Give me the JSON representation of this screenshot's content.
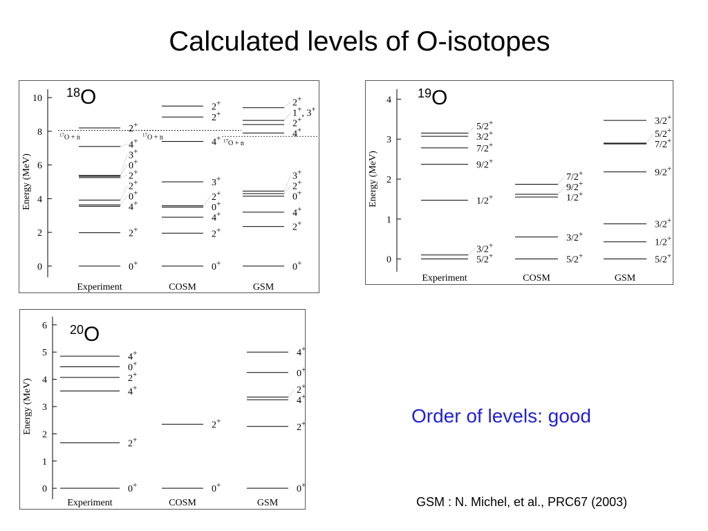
{
  "slide": {
    "title": "Calculated levels of O-isotopes",
    "note": "Order of levels: good",
    "citation": "GSM : N. Michel, et al., PRC67 (2003)"
  },
  "chart_data": [
    {
      "type": "level-scheme",
      "isotope": {
        "mass": "18",
        "symbol": "O"
      },
      "ylabel": "Energy (MeV)",
      "ylim": [
        -0.5,
        10.5
      ],
      "yticks": [
        0,
        2,
        4,
        6,
        8,
        10
      ],
      "columns": [
        {
          "name": "Experiment",
          "levels": [
            {
              "e": 0,
              "label": "0+"
            },
            {
              "e": 1.98,
              "label": "2+"
            },
            {
              "e": 3.55,
              "label": "4+"
            },
            {
              "e": 3.63,
              "label": "0+"
            },
            {
              "e": 3.92,
              "label": "2+"
            },
            {
              "e": 5.25,
              "label": "2+"
            },
            {
              "e": 5.33,
              "label": "0+"
            },
            {
              "e": 5.38,
              "label": "3+"
            },
            {
              "e": 7.1,
              "label": "4+"
            },
            {
              "e": 8.2,
              "label": "2+"
            }
          ]
        },
        {
          "name": "COSM",
          "levels": [
            {
              "e": 0,
              "label": "0+"
            },
            {
              "e": 1.95,
              "label": "2+"
            },
            {
              "e": 2.9,
              "label": "4+"
            },
            {
              "e": 3.5,
              "label": "0+"
            },
            {
              "e": 3.58,
              "label": "2+"
            },
            {
              "e": 5.0,
              "label": "3+"
            },
            {
              "e": 7.4,
              "label": "4+"
            },
            {
              "e": 8.85,
              "label": "2+"
            },
            {
              "e": 9.5,
              "label": "2+"
            }
          ]
        },
        {
          "name": "GSM",
          "levels": [
            {
              "e": 0,
              "label": "0+"
            },
            {
              "e": 2.35,
              "label": "2+"
            },
            {
              "e": 3.2,
              "label": "4+"
            },
            {
              "e": 4.15,
              "label": "0+"
            },
            {
              "e": 4.3,
              "label": "2+"
            },
            {
              "e": 4.45,
              "label": "3+"
            },
            {
              "e": 7.9,
              "label": "4+"
            },
            {
              "e": 8.4,
              "label": "2+"
            },
            {
              "e": 8.65,
              "label": "1+,  3+"
            },
            {
              "e": 9.4,
              "label": "2+"
            }
          ]
        }
      ],
      "thresholds": [
        {
          "column": "Experiment",
          "e": 8.05,
          "label": "17O + n"
        },
        {
          "column": "COSM",
          "e": 8.05,
          "label": "17O + n"
        },
        {
          "column": "GSM",
          "e": 7.7,
          "label": "17O + n"
        }
      ]
    },
    {
      "type": "level-scheme",
      "isotope": {
        "mass": "19",
        "symbol": "O"
      },
      "ylabel": "Energy (MeV)",
      "ylim": [
        -0.25,
        4.25
      ],
      "yticks": [
        0,
        1,
        2,
        3,
        4
      ],
      "columns": [
        {
          "name": "Experiment",
          "levels": [
            {
              "e": 0,
              "label": "5/2+"
            },
            {
              "e": 0.1,
              "label": "3/2+"
            },
            {
              "e": 1.47,
              "label": "1/2+"
            },
            {
              "e": 2.37,
              "label": "9/2+"
            },
            {
              "e": 2.78,
              "label": "7/2+"
            },
            {
              "e": 3.07,
              "label": "3/2+"
            },
            {
              "e": 3.15,
              "label": "5/2+"
            }
          ]
        },
        {
          "name": "COSM",
          "levels": [
            {
              "e": 0,
              "label": "5/2+"
            },
            {
              "e": 0.55,
              "label": "3/2+"
            },
            {
              "e": 1.55,
              "label": "1/2+"
            },
            {
              "e": 1.62,
              "label": "9/2+"
            },
            {
              "e": 1.87,
              "label": "7/2+"
            }
          ]
        },
        {
          "name": "GSM",
          "levels": [
            {
              "e": 0,
              "label": "5/2+"
            },
            {
              "e": 0.43,
              "label": "1/2+"
            },
            {
              "e": 0.88,
              "label": "3/2+"
            },
            {
              "e": 2.18,
              "label": "9/2+"
            },
            {
              "e": 2.88,
              "label": "7/2+"
            },
            {
              "e": 2.9,
              "label": "5/2+"
            },
            {
              "e": 3.47,
              "label": "3/2+"
            }
          ]
        }
      ]
    },
    {
      "type": "level-scheme",
      "isotope": {
        "mass": "20",
        "symbol": "O"
      },
      "ylabel": "Energy (MeV)",
      "ylim": [
        -0.3,
        6.3
      ],
      "yticks": [
        0,
        1,
        2,
        3,
        4,
        5,
        6
      ],
      "columns": [
        {
          "name": "Experiment",
          "levels": [
            {
              "e": 0,
              "label": "0+"
            },
            {
              "e": 1.67,
              "label": "2+"
            },
            {
              "e": 3.57,
              "label": "4+"
            },
            {
              "e": 4.07,
              "label": "2+"
            },
            {
              "e": 4.46,
              "label": "0+"
            },
            {
              "e": 4.85,
              "label": "4+"
            }
          ]
        },
        {
          "name": "COSM",
          "levels": [
            {
              "e": 0,
              "label": "0+"
            },
            {
              "e": 2.35,
              "label": "2+"
            }
          ]
        },
        {
          "name": "GSM",
          "levels": [
            {
              "e": 0,
              "label": "0+"
            },
            {
              "e": 2.27,
              "label": "2+"
            },
            {
              "e": 3.25,
              "label": "4+"
            },
            {
              "e": 3.35,
              "label": "2+"
            },
            {
              "e": 4.25,
              "label": "0+"
            },
            {
              "e": 5.0,
              "label": "4+"
            }
          ]
        }
      ]
    }
  ]
}
